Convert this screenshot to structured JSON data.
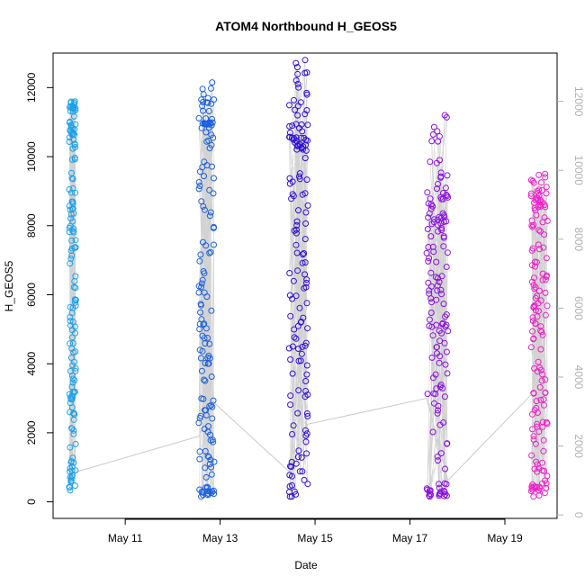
{
  "chart_data": {
    "type": "scatter",
    "title": "ATOM4 Northbound H_GEOS5",
    "xlabel": "Date",
    "ylabel": "H_GEOS5",
    "x_tick_labels": [
      "May 11",
      "May 13",
      "May 15",
      "May 17",
      "May 19"
    ],
    "x_ticks": [
      11,
      13,
      15,
      17,
      19
    ],
    "xlim": [
      9.48,
      20.1
    ],
    "ylim": [
      -480,
      13000
    ],
    "y_ticks": [
      0,
      2000,
      4000,
      6000,
      8000,
      10000,
      12000
    ],
    "y_tick_labels": [
      "0",
      "2000",
      "4000",
      "6000",
      "8000",
      "10000",
      "12000"
    ],
    "right_ylim": [
      -100,
      13400
    ],
    "right_y_ticks": [
      0,
      2000,
      4000,
      6000,
      8000,
      10000,
      12000
    ],
    "right_y_tick_labels": [
      "0",
      "2000",
      "4000",
      "6000",
      "8000",
      "10000",
      "12000"
    ],
    "grid": false,
    "connector_color": "#c8c8c8",
    "series_colors": [
      "#1ea0e8",
      "#1c60dc",
      "#3010d8",
      "#8a10e0",
      "#ee20c8"
    ],
    "connector_points": [
      [
        9.85,
        820
      ],
      [
        12.55,
        1900
      ],
      [
        12.85,
        2900
      ],
      [
        14.45,
        880
      ],
      [
        14.85,
        2250
      ],
      [
        17.35,
        3000
      ],
      [
        17.8,
        620
      ],
      [
        19.55,
        3100
      ]
    ],
    "flights": [
      {
        "date": "May 10",
        "x_start": 9.82,
        "x_end": 9.96,
        "y_min": 330,
        "y_max": 11600,
        "upper_cluster": [
          10500,
          11600
        ],
        "mid_cluster": [
          5800,
          5900
        ]
      },
      {
        "date": "May 13",
        "x_start": 12.55,
        "x_end": 12.88,
        "y_min": 150,
        "y_max": 12150,
        "upper_cluster": [
          10900,
          11000
        ]
      },
      {
        "date": "May 15",
        "x_start": 14.45,
        "x_end": 14.85,
        "y_min": 150,
        "y_max": 12800,
        "upper_cluster": [
          10200,
          10600
        ]
      },
      {
        "date": "May 17",
        "x_start": 17.35,
        "x_end": 17.8,
        "y_min": 150,
        "y_max": 11200,
        "upper_cluster": [
          8000,
          8800
        ]
      },
      {
        "date": "May 19",
        "x_start": 19.55,
        "x_end": 19.9,
        "y_min": 150,
        "y_max": 9500,
        "upper_cluster": [
          8300,
          9400
        ]
      }
    ]
  }
}
